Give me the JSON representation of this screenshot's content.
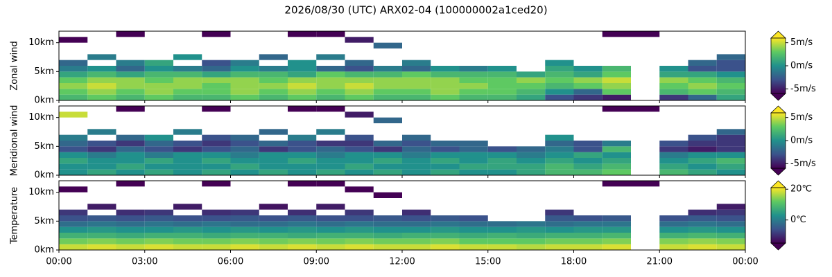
{
  "title": "2026/08/30 (UTC) ARX02-04 (100000002a1ced20)",
  "chart_data": [
    {
      "type": "heatmap",
      "ylabel": "Zonal wind",
      "x": [
        0,
        1,
        2,
        3,
        4,
        5,
        6,
        7,
        8,
        9,
        10,
        11,
        12,
        13,
        14,
        15,
        16,
        17,
        18,
        19,
        20,
        21,
        22,
        23
      ],
      "y": [
        0,
        1,
        2,
        3,
        4,
        5,
        6,
        7,
        8,
        9,
        10,
        11
      ],
      "ylim": [
        0,
        12
      ],
      "yticks": [
        {
          "value": 0,
          "label": "0km"
        },
        {
          "value": 5,
          "label": "5km"
        },
        {
          "value": 10,
          "label": "10km"
        }
      ],
      "clim": [
        -6,
        6
      ],
      "cticks": [
        {
          "value": 5,
          "label": "5m/s"
        },
        {
          "value": 0,
          "label": "0m/s"
        },
        {
          "value": -5,
          "label": "-5m/s"
        }
      ],
      "z": [
        [
          2,
          3,
          2,
          3,
          2,
          2,
          3,
          2,
          3,
          2,
          3,
          2,
          2,
          3,
          2,
          2,
          1,
          -3,
          -4,
          -5,
          null,
          -4,
          -2,
          1
        ],
        [
          3,
          4,
          3,
          4,
          3,
          3,
          4,
          3,
          4,
          3,
          4,
          3,
          3,
          4,
          3,
          3,
          2,
          0,
          -2,
          3,
          null,
          2,
          3,
          2
        ],
        [
          4,
          5,
          4,
          4,
          4,
          3,
          4,
          4,
          5,
          4,
          5,
          4,
          4,
          4,
          4,
          3,
          3,
          2,
          3,
          4,
          null,
          3,
          4,
          3
        ],
        [
          3,
          4,
          4,
          3,
          4,
          4,
          4,
          3,
          4,
          4,
          4,
          4,
          4,
          4,
          3,
          3,
          4,
          3,
          4,
          5,
          null,
          4,
          3,
          2
        ],
        [
          1,
          2,
          1,
          2,
          2,
          1,
          2,
          2,
          1,
          3,
          2,
          2,
          3,
          2,
          2,
          2,
          1,
          2,
          1,
          3,
          null,
          1,
          1,
          0
        ],
        [
          -1,
          0,
          -2,
          0,
          -1,
          -2,
          0,
          -1,
          0,
          -2,
          -3,
          -1,
          -2,
          0,
          -1,
          0,
          null,
          1,
          0,
          2,
          null,
          0,
          -3,
          -3
        ],
        [
          -2,
          null,
          -1,
          1,
          null,
          -3,
          -1,
          null,
          0,
          null,
          -2,
          null,
          -1,
          null,
          null,
          null,
          null,
          0,
          null,
          null,
          null,
          null,
          -2,
          -3
        ],
        [
          null,
          -1,
          null,
          null,
          0,
          null,
          null,
          -2,
          null,
          -1,
          null,
          null,
          null,
          null,
          null,
          null,
          null,
          null,
          null,
          null,
          null,
          null,
          null,
          -2
        ],
        [
          null,
          null,
          null,
          null,
          null,
          null,
          null,
          null,
          null,
          null,
          null,
          null,
          null,
          null,
          null,
          null,
          null,
          null,
          null,
          null,
          null,
          null,
          null,
          null
        ],
        [
          null,
          null,
          null,
          null,
          null,
          null,
          null,
          null,
          null,
          null,
          null,
          -2,
          null,
          null,
          null,
          null,
          null,
          null,
          null,
          null,
          null,
          null,
          null,
          null
        ],
        [
          -6,
          null,
          null,
          null,
          null,
          null,
          null,
          null,
          null,
          null,
          -5,
          null,
          null,
          null,
          null,
          null,
          null,
          null,
          null,
          null,
          null,
          null,
          null,
          null
        ],
        [
          null,
          null,
          -6,
          null,
          null,
          -6,
          null,
          null,
          -6,
          -6,
          null,
          null,
          null,
          null,
          null,
          null,
          null,
          null,
          null,
          -6,
          -6,
          null,
          null,
          null
        ]
      ]
    },
    {
      "type": "heatmap",
      "ylabel": "Meridional wind",
      "x": [
        0,
        1,
        2,
        3,
        4,
        5,
        6,
        7,
        8,
        9,
        10,
        11,
        12,
        13,
        14,
        15,
        16,
        17,
        18,
        19,
        20,
        21,
        22,
        23
      ],
      "y": [
        0,
        1,
        2,
        3,
        4,
        5,
        6,
        7,
        8,
        9,
        10,
        11
      ],
      "ylim": [
        0,
        12
      ],
      "yticks": [
        {
          "value": 0,
          "label": "0km"
        },
        {
          "value": 5,
          "label": "5km"
        },
        {
          "value": 10,
          "label": "10km"
        }
      ],
      "clim": [
        -6,
        6
      ],
      "cticks": [
        {
          "value": 5,
          "label": "5m/s"
        },
        {
          "value": 0,
          "label": "0m/s"
        },
        {
          "value": -5,
          "label": "-5m/s"
        }
      ],
      "z": [
        [
          0,
          1,
          0,
          1,
          0,
          1,
          0,
          1,
          0,
          1,
          0,
          1,
          0,
          1,
          0,
          0,
          1,
          2,
          2,
          3,
          null,
          2,
          1,
          0
        ],
        [
          0,
          0,
          1,
          0,
          0,
          0,
          1,
          0,
          0,
          0,
          1,
          0,
          0,
          0,
          1,
          1,
          1,
          2,
          1,
          2,
          null,
          1,
          0,
          1
        ],
        [
          1,
          0,
          0,
          1,
          0,
          1,
          0,
          0,
          1,
          0,
          0,
          1,
          0,
          1,
          0,
          1,
          0,
          1,
          0,
          1,
          null,
          0,
          1,
          2
        ],
        [
          0,
          -1,
          0,
          -1,
          0,
          0,
          -1,
          0,
          0,
          -1,
          0,
          0,
          -1,
          0,
          0,
          0,
          -1,
          0,
          1,
          0,
          null,
          -1,
          0,
          0
        ],
        [
          -3,
          -4,
          -2,
          -3,
          -4,
          -3,
          -2,
          -4,
          -3,
          -2,
          -3,
          -4,
          -2,
          -3,
          -2,
          -3,
          -2,
          -1,
          -3,
          2,
          null,
          -4,
          -5,
          -4
        ],
        [
          -2,
          -3,
          -4,
          -2,
          -3,
          -4,
          -3,
          -2,
          -3,
          -4,
          -4,
          -2,
          -3,
          -2,
          -2,
          null,
          null,
          -2,
          -3,
          -1,
          null,
          -3,
          -4,
          -4
        ],
        [
          -1,
          null,
          -2,
          0,
          null,
          -3,
          -2,
          null,
          -1,
          null,
          -3,
          null,
          -2,
          null,
          null,
          null,
          null,
          0,
          null,
          null,
          null,
          null,
          -3,
          -4
        ],
        [
          null,
          -1,
          null,
          null,
          -1,
          null,
          null,
          -2,
          null,
          -1,
          null,
          null,
          null,
          null,
          null,
          null,
          null,
          null,
          null,
          null,
          null,
          null,
          null,
          -2
        ],
        [
          null,
          null,
          null,
          null,
          null,
          null,
          null,
          null,
          null,
          null,
          null,
          null,
          null,
          null,
          null,
          null,
          null,
          null,
          null,
          null,
          null,
          null,
          null,
          null
        ],
        [
          null,
          null,
          null,
          null,
          null,
          null,
          null,
          null,
          null,
          null,
          null,
          -2,
          null,
          null,
          null,
          null,
          null,
          null,
          null,
          null,
          null,
          null,
          null,
          null
        ],
        [
          5,
          null,
          null,
          null,
          null,
          null,
          null,
          null,
          null,
          null,
          -5,
          null,
          null,
          null,
          null,
          null,
          null,
          null,
          null,
          null,
          null,
          null,
          null,
          null
        ],
        [
          null,
          null,
          -6,
          null,
          null,
          -6,
          null,
          null,
          -6,
          -6,
          null,
          null,
          null,
          null,
          null,
          null,
          null,
          null,
          null,
          -6,
          -6,
          null,
          null,
          null
        ]
      ]
    },
    {
      "type": "heatmap",
      "ylabel": "Temperature",
      "x": [
        0,
        1,
        2,
        3,
        4,
        5,
        6,
        7,
        8,
        9,
        10,
        11,
        12,
        13,
        14,
        15,
        16,
        17,
        18,
        19,
        20,
        21,
        22,
        23
      ],
      "y": [
        0,
        1,
        2,
        3,
        4,
        5,
        6,
        7,
        8,
        9,
        10,
        11
      ],
      "xlim": [
        0,
        24
      ],
      "xticks": [
        {
          "value": 0,
          "label": "00:00"
        },
        {
          "value": 3,
          "label": "03:00"
        },
        {
          "value": 6,
          "label": "06:00"
        },
        {
          "value": 9,
          "label": "09:00"
        },
        {
          "value": 12,
          "label": "12:00"
        },
        {
          "value": 15,
          "label": "15:00"
        },
        {
          "value": 18,
          "label": "18:00"
        },
        {
          "value": 21,
          "label": "21:00"
        },
        {
          "value": 24,
          "label": "00:00"
        }
      ],
      "ylim": [
        0,
        12
      ],
      "yticks": [
        {
          "value": 0,
          "label": "0km"
        },
        {
          "value": 5,
          "label": "5km"
        },
        {
          "value": 10,
          "label": "10km"
        }
      ],
      "clim": [
        -15,
        21
      ],
      "cticks": [
        {
          "value": 20,
          "label": "20℃"
        },
        {
          "value": 0,
          "label": "0℃"
        }
      ],
      "z": [
        [
          18,
          19,
          18,
          19,
          18,
          18,
          19,
          18,
          19,
          18,
          19,
          18,
          18,
          19,
          18,
          18,
          17,
          18,
          18,
          19,
          null,
          18,
          19,
          18
        ],
        [
          13,
          14,
          13,
          14,
          13,
          13,
          14,
          13,
          14,
          13,
          14,
          13,
          13,
          14,
          12,
          12,
          12,
          13,
          13,
          14,
          null,
          14,
          15,
          14
        ],
        [
          8,
          8,
          7,
          8,
          8,
          7,
          8,
          8,
          7,
          8,
          8,
          7,
          8,
          8,
          7,
          8,
          7,
          8,
          8,
          9,
          null,
          8,
          9,
          8
        ],
        [
          3,
          4,
          3,
          3,
          4,
          3,
          4,
          3,
          4,
          3,
          4,
          3,
          3,
          4,
          3,
          3,
          4,
          3,
          4,
          4,
          null,
          3,
          4,
          3
        ],
        [
          -2,
          -1,
          -2,
          -1,
          -2,
          -1,
          -2,
          -2,
          -1,
          -2,
          -1,
          -2,
          -2,
          -1,
          -2,
          -2,
          -1,
          -2,
          -1,
          -1,
          null,
          -2,
          -1,
          -2
        ],
        [
          -6,
          -5,
          -6,
          -5,
          -6,
          -6,
          -5,
          -6,
          -5,
          -6,
          -6,
          -5,
          -6,
          -5,
          -6,
          null,
          null,
          -5,
          -6,
          -5,
          null,
          -6,
          -5,
          -6
        ],
        [
          -9,
          null,
          -10,
          -9,
          null,
          -10,
          -9,
          null,
          -10,
          null,
          -9,
          null,
          -10,
          null,
          null,
          null,
          null,
          -9,
          null,
          null,
          null,
          null,
          -10,
          -9
        ],
        [
          null,
          -12,
          null,
          null,
          -12,
          null,
          null,
          -13,
          null,
          -12,
          null,
          null,
          null,
          null,
          null,
          null,
          null,
          null,
          null,
          null,
          null,
          null,
          null,
          -12
        ],
        [
          null,
          null,
          null,
          null,
          null,
          null,
          null,
          null,
          null,
          null,
          null,
          null,
          null,
          null,
          null,
          null,
          null,
          null,
          null,
          null,
          null,
          null,
          null,
          null
        ],
        [
          null,
          null,
          null,
          null,
          null,
          null,
          null,
          null,
          null,
          null,
          null,
          -16,
          null,
          null,
          null,
          null,
          null,
          null,
          null,
          null,
          null,
          null,
          null,
          null
        ],
        [
          -18,
          null,
          null,
          null,
          null,
          null,
          null,
          null,
          null,
          null,
          -18,
          null,
          null,
          null,
          null,
          null,
          null,
          null,
          null,
          null,
          null,
          null,
          null,
          null
        ],
        [
          null,
          null,
          -20,
          null,
          null,
          -20,
          null,
          null,
          -20,
          -20,
          null,
          null,
          null,
          null,
          null,
          null,
          null,
          null,
          null,
          -20,
          -20,
          null,
          null,
          null
        ]
      ]
    }
  ]
}
